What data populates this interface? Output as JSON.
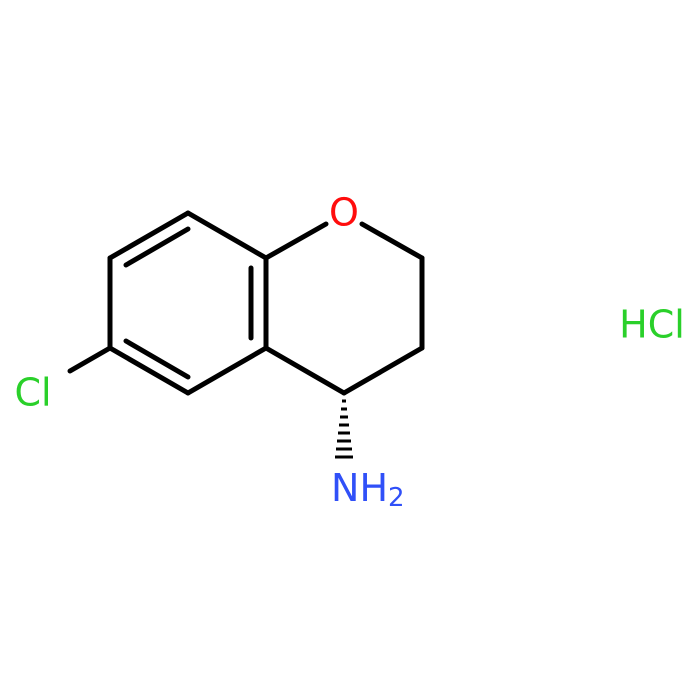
{
  "atoms": {
    "oxygen": "O",
    "chlorine": "Cl",
    "amine": {
      "element": "N",
      "hydrogen": "H",
      "count": 2
    }
  },
  "salt": "HCl"
}
